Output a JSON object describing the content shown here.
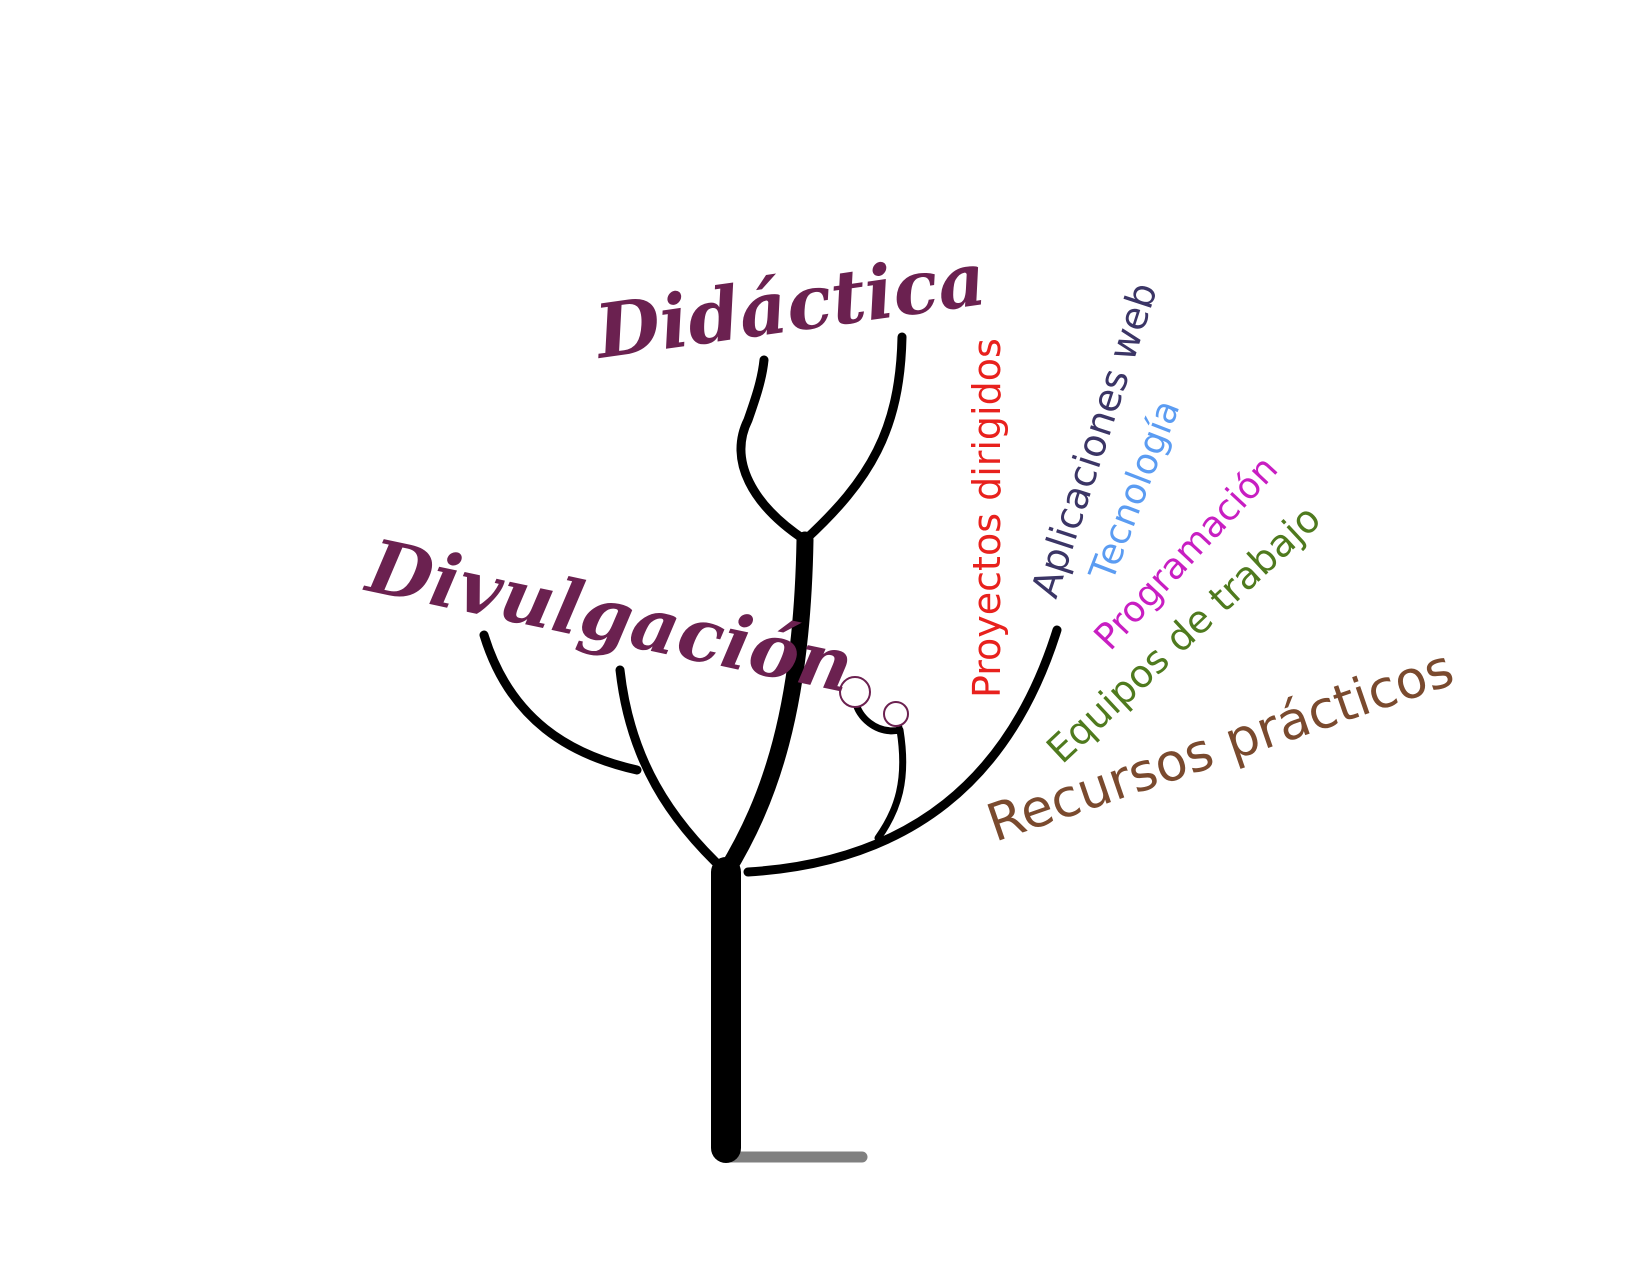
{
  "diagram": {
    "main_labels": {
      "didactica": {
        "text": "Didáctica",
        "color": "#6b2150"
      },
      "divulgacion": {
        "text": "Divulgación",
        "color": "#6b2150"
      }
    },
    "leaf_labels": [
      {
        "id": "proyectos",
        "text": "Proyectos dirigidos",
        "color": "#e8211d"
      },
      {
        "id": "aplicaciones",
        "text": "Aplicaciones web",
        "color": "#3b3566"
      },
      {
        "id": "tecnologia",
        "text": "Tecnología",
        "color": "#5b9cf2"
      },
      {
        "id": "programacion",
        "text": "Programación",
        "color": "#c81ec2"
      },
      {
        "id": "equipos",
        "text": "Equipos de trabajo",
        "color": "#4f7a1e"
      },
      {
        "id": "recursos",
        "text": "Recursos prácticos",
        "color": "#7a4a2e"
      }
    ],
    "colors": {
      "branches": "#000000",
      "ground": "#808080",
      "buds": "#6b2150"
    }
  }
}
